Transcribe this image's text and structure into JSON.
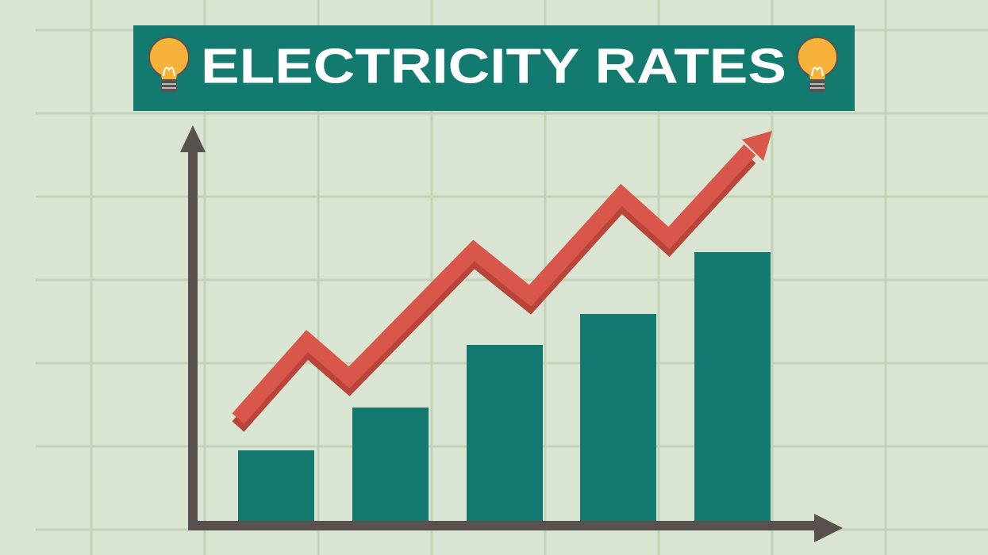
{
  "header": {
    "title": "ELECTRICITY RATES"
  }
}
